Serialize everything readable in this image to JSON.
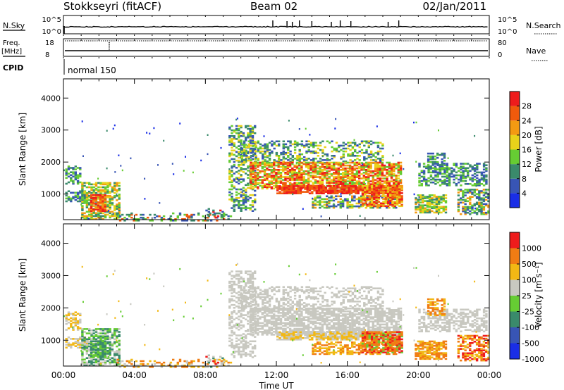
{
  "header": {
    "station": "Stokkseyri (fitACF)",
    "beam": "Beam 02",
    "date": "02/Jan/2011"
  },
  "strip_nsky": {
    "label": "N.Sky",
    "left_ticks": [
      "10^5",
      "10^0"
    ],
    "right_label": "N.Search",
    "right_ticks": [
      "10^5",
      "10^0"
    ]
  },
  "strip_freq": {
    "label_line1": "Freq.",
    "label_line2": "[MHz]",
    "left_ticks": [
      "18",
      "8"
    ],
    "right_label": "Nave",
    "right_ticks": [
      "80",
      "0"
    ]
  },
  "strip_cpid": {
    "label": "CPID",
    "mode": "normal 150"
  },
  "chart_data": [
    {
      "type": "heatmap",
      "name": "power",
      "ylabel": "Slant Range [km]",
      "ylim": [
        200,
        4600
      ],
      "yticks": [
        "1000",
        "2000",
        "3000",
        "4000"
      ],
      "x_range_hours": [
        0,
        24
      ],
      "colorbar": {
        "label": "Power [dB]",
        "ticks": [
          "4",
          "8",
          "12",
          "16",
          "20",
          "24",
          "28"
        ],
        "colors": [
          "#1a2ee6",
          "#3855b5",
          "#3a8a6b",
          "#66cc33",
          "#e8d21a",
          "#f39a12",
          "#f05a0c",
          "#ee1c1c"
        ]
      }
    },
    {
      "type": "heatmap",
      "name": "velocity",
      "ylabel": "Slant Range [km]",
      "ylim": [
        200,
        4600
      ],
      "yticks": [
        "1000",
        "2000",
        "3000",
        "4000"
      ],
      "x_range_hours": [
        0,
        24
      ],
      "xticks": [
        "00:00",
        "04:00",
        "08:00",
        "12:00",
        "16:00",
        "20:00",
        "00:00"
      ],
      "xlabel": "Time UT",
      "colorbar": {
        "label": "Velocity [m s⁻¹]",
        "ticks": [
          "1000",
          "500",
          "100",
          "25",
          "-25",
          "-100",
          "-500",
          "-1000"
        ],
        "colors": [
          "#1a2ee6",
          "#3855b5",
          "#3a8a6b",
          "#66cc33",
          "#c8c8c0",
          "#f2b814",
          "#f07c14",
          "#ee1c1c"
        ]
      }
    }
  ]
}
